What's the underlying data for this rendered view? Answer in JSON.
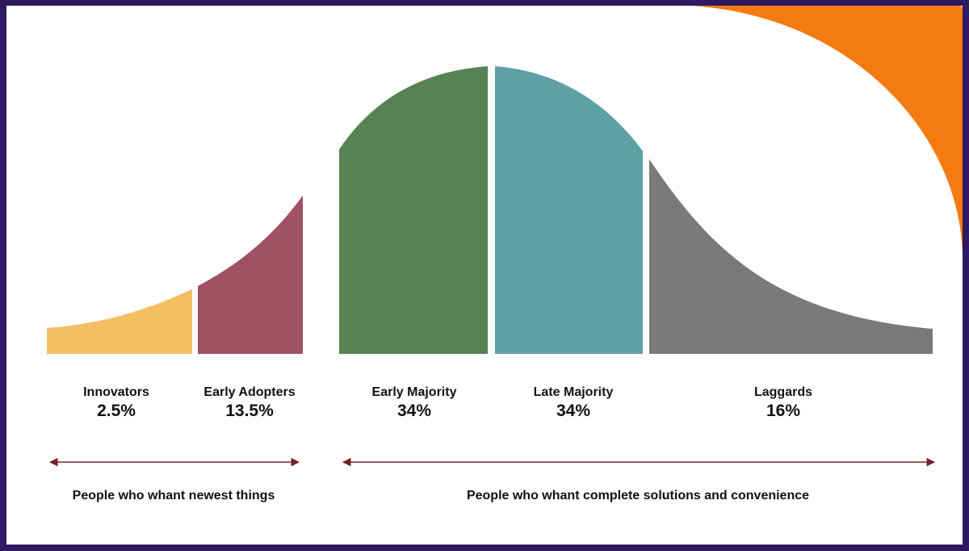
{
  "colors": {
    "frame": "#2e1a5e",
    "accent": "#f47b12",
    "background": "#ffffff",
    "arrow": "#7a1f2b"
  },
  "segments": [
    {
      "name": "Innovators",
      "percent": "2.5%",
      "value": 2.5,
      "color": "#f2bf63"
    },
    {
      "name": "Early Adopters",
      "percent": "13.5%",
      "value": 13.5,
      "color": "#a05163"
    },
    {
      "name": "Early Majority",
      "percent": "34%",
      "value": 34,
      "color": "#578252"
    },
    {
      "name": "Late Majority",
      "percent": "34%",
      "value": 34,
      "color": "#5fa0a6"
    },
    {
      "name": "Laggards",
      "percent": "16%",
      "value": 16,
      "color": "#7a7a7a"
    }
  ],
  "groups": [
    {
      "caption": "People who whant newest things"
    },
    {
      "caption": "People who whant complete solutions and convenience"
    }
  ]
}
